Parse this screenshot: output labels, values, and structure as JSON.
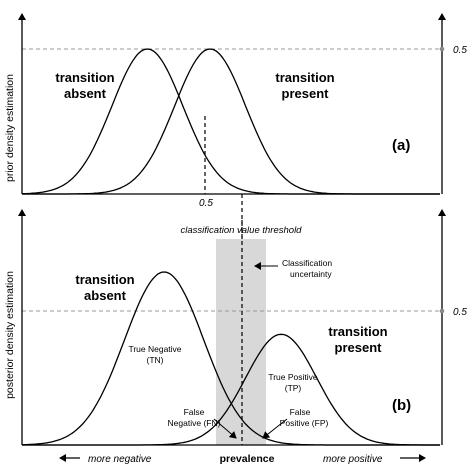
{
  "panel_a": {
    "ylabel": "prior density estimation",
    "tag": "(a)",
    "yaxis_value": "0.5",
    "xaxis_value": "0.5",
    "curve_left": {
      "line1": "transition",
      "line2": "absent",
      "mean": 0.3,
      "sd": 0.085,
      "peak": 1.0
    },
    "curve_right": {
      "line1": "transition",
      "line2": "present",
      "mean": 0.45,
      "sd": 0.085,
      "peak": 1.0
    },
    "axis_color": "#000000",
    "gridline_color": "#999999"
  },
  "panel_b": {
    "ylabel": "posterior density estimation",
    "tag": "(b)",
    "yaxis_value": "0.5",
    "threshold_label": "classification value threshold",
    "uncertainty_label_line1": "Classification",
    "uncertainty_label_line2": "uncertainty",
    "band_color": "#d8d8d8",
    "curve_absent": {
      "line1": "transition",
      "line2": "absent",
      "mean": 0.34,
      "sd": 0.095,
      "peak": 1.0
    },
    "curve_present": {
      "line1": "transition",
      "line2": "present",
      "mean": 0.62,
      "sd": 0.085,
      "peak": 0.64
    },
    "tn_line1": "True Negative",
    "tn_line2": "(TN)",
    "tp_line1": "True Positive",
    "tp_line2": "(TP)",
    "fn_line1": "False",
    "fn_line2": "Negative (FN)",
    "fp_line1": "False",
    "fp_line2": "Positive (FP)"
  },
  "bottom_axis": {
    "left_label": "more negative",
    "center_label": "prevalence",
    "right_label": "more positive"
  }
}
